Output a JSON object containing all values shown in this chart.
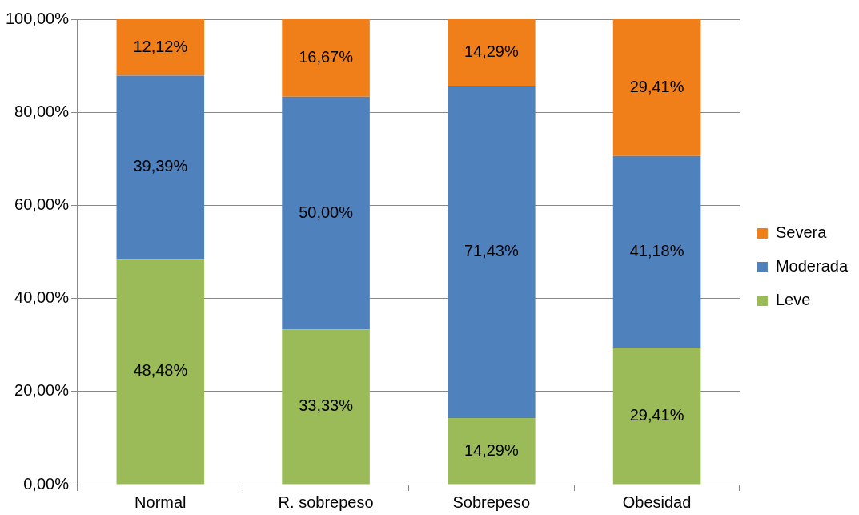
{
  "chart_data": {
    "type": "bar",
    "stacked": true,
    "categories": [
      "Normal",
      "R. sobrepeso",
      "Sobrepeso",
      "Obesidad"
    ],
    "series": [
      {
        "name": "Leve",
        "color": "#9bbb59",
        "values": [
          48.48,
          33.33,
          14.29,
          29.41
        ],
        "value_labels": [
          "48,48%",
          "33,33%",
          "14,29%",
          "29,41%"
        ]
      },
      {
        "name": "Moderada",
        "color": "#4f81bd",
        "values": [
          39.39,
          50.0,
          71.43,
          41.18
        ],
        "value_labels": [
          "39,39%",
          "50,00%",
          "71,43%",
          "41,18%"
        ]
      },
      {
        "name": "Severa",
        "color": "#f07f1a",
        "values": [
          12.12,
          16.67,
          14.29,
          29.41
        ],
        "value_labels": [
          "12,12%",
          "16,67%",
          "14,29%",
          "29,41%"
        ]
      }
    ],
    "ylim": [
      0,
      100
    ],
    "yticks": [
      {
        "value": 0,
        "label": "0,00%"
      },
      {
        "value": 20,
        "label": "20,00%"
      },
      {
        "value": 40,
        "label": "40,00%"
      },
      {
        "value": 60,
        "label": "60,00%"
      },
      {
        "value": 80,
        "label": "80,00%"
      },
      {
        "value": 100,
        "label": "100,00%"
      }
    ],
    "grid": "y",
    "legend": "right"
  }
}
